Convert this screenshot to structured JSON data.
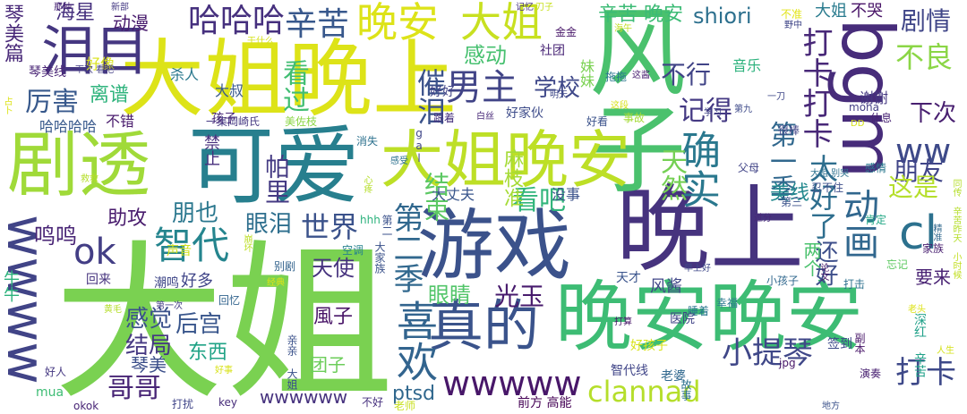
{
  "words": [
    {
      "text": "大姐",
      "color": "#7ad151"
    },
    {
      "text": "晚上",
      "color": "#46337e"
    },
    {
      "text": "风子",
      "color": "#4ac16d"
    },
    {
      "text": "晚安晚安",
      "color": "#3dbc74"
    },
    {
      "text": "可爱",
      "color": "#277f8e"
    },
    {
      "text": "游戏",
      "color": "#3b528b"
    },
    {
      "text": "大姐晚上",
      "color": "#dde318"
    },
    {
      "text": "剧透",
      "color": "#a0da39"
    },
    {
      "text": "大姐晚安",
      "color": "#bddf26"
    },
    {
      "text": "bgm",
      "color": "#472c7a"
    },
    {
      "text": "wwww",
      "color": "#414487"
    },
    {
      "text": "泪目",
      "color": "#453781"
    },
    {
      "text": "真的",
      "color": "#3a538b"
    },
    {
      "text": "喜欢",
      "color": "#32648e"
    },
    {
      "text": "晚安",
      "color": "#dde318"
    },
    {
      "text": "大姐",
      "color": "#c8e020"
    },
    {
      "text": "确实",
      "color": "#2a788e"
    },
    {
      "text": "cl",
      "color": "#2c718e"
    },
    {
      "text": "哈哈哈",
      "color": "#46307e"
    },
    {
      "text": "辛苦",
      "color": "#38588c"
    },
    {
      "text": "男主",
      "color": "#414487"
    },
    {
      "text": "ww",
      "color": "#3e4a89"
    },
    {
      "text": "动画",
      "color": "#31678e"
    },
    {
      "text": "打卡打卡",
      "color": "#482878"
    },
    {
      "text": "太好了",
      "color": "#2e6e8e"
    },
    {
      "text": "小提琴",
      "color": "#3f4788"
    },
    {
      "text": "wwwww",
      "color": "#481769"
    },
    {
      "text": "clannad",
      "color": "#b5de2b"
    },
    {
      "text": "打卡",
      "color": "#3e4989"
    },
    {
      "text": "第一季",
      "color": "#31688e"
    },
    {
      "text": "不良",
      "color": "#8bd646"
    },
    {
      "text": "剧情",
      "color": "#404688"
    },
    {
      "text": "不哭",
      "color": "#481467"
    },
    {
      "text": "大姐",
      "color": "#297b8e"
    },
    {
      "text": "第二季",
      "color": "#31688e"
    },
    {
      "text": "结束",
      "color": "#5cc863"
    },
    {
      "text": "智代",
      "color": "#25858e"
    },
    {
      "text": "ok",
      "color": "#433e85"
    },
    {
      "text": "世界",
      "color": "#3b528b"
    },
    {
      "text": "厉害",
      "color": "#38598c"
    },
    {
      "text": "看过",
      "color": "#40bd72"
    },
    {
      "text": "催泪",
      "color": "#3b528b"
    },
    {
      "text": "感动",
      "color": "#46c06f"
    },
    {
      "text": "辛苦 晚安",
      "color": "#3cbb75"
    },
    {
      "text": "shiori",
      "color": "#2d708e"
    },
    {
      "text": "学校",
      "color": "#3f4889"
    },
    {
      "text": "记得",
      "color": "#443983"
    },
    {
      "text": "不行",
      "color": "#414487"
    },
    {
      "text": "下次",
      "color": "#481f70"
    },
    {
      "text": "朋友",
      "color": "#404588"
    },
    {
      "text": "这是",
      "color": "#b5de2b"
    },
    {
      "text": "美线",
      "color": "#23898e"
    },
    {
      "text": "看吧",
      "color": "#31b57b"
    },
    {
      "text": "天然",
      "color": "#75d054"
    },
    {
      "text": "麻枝准",
      "color": "#a5db36"
    },
    {
      "text": "还好",
      "color": "#3d4e8a"
    },
    {
      "text": "两个",
      "color": "#4ac16d"
    },
    {
      "text": "光玉",
      "color": "#481b6d"
    },
    {
      "text": "眼睛",
      "color": "#52c569"
    },
    {
      "text": "感觉",
      "color": "#3b518b"
    },
    {
      "text": "后宫",
      "color": "#39568c"
    },
    {
      "text": "东西",
      "color": "#20a386"
    },
    {
      "text": "哥哥",
      "color": "#482576"
    },
    {
      "text": "琴美",
      "color": "#3c4f8a"
    },
    {
      "text": "结局",
      "color": "#453882"
    },
    {
      "text": "鸣鸣",
      "color": "#482475"
    },
    {
      "text": "助攻",
      "color": "#481b6d"
    },
    {
      "text": "朋也",
      "color": "#2a778e"
    },
    {
      "text": "眼泪",
      "color": "#2e6f8e"
    },
    {
      "text": "天使",
      "color": "#46327e"
    },
    {
      "text": "風子",
      "color": "#481467"
    },
    {
      "text": "团子",
      "color": "#6ccd5a"
    },
    {
      "text": "ptsd",
      "color": "#31688e"
    },
    {
      "text": "wwwwww",
      "color": "#46327e"
    },
    {
      "text": "帕里",
      "color": "#443a83"
    },
    {
      "text": "禁止",
      "color": "#472e7c"
    },
    {
      "text": "琴美篇",
      "color": "#482878"
    },
    {
      "text": "海星",
      "color": "#46307e"
    },
    {
      "text": "动漫",
      "color": "#481b6d"
    },
    {
      "text": "离谱",
      "color": "#2eb37c"
    },
    {
      "text": "哈哈哈哈",
      "color": "#38598c"
    },
    {
      "text": "不错",
      "color": "#481a6c"
    },
    {
      "text": "大叔",
      "color": "#38598c"
    },
    {
      "text": "杀人",
      "color": "#2a788e"
    },
    {
      "text": "好像",
      "color": "#d8e219"
    },
    {
      "text": "一集岡崎氏",
      "color": "#453882"
    },
    {
      "text": "美佐枝",
      "color": "#8bd646"
    },
    {
      "text": "好好",
      "color": "#414487"
    },
    {
      "text": "社团",
      "color": "#482576"
    },
    {
      "text": "音乐",
      "color": "#2db27d"
    },
    {
      "text": "谢谢",
      "color": "#453882"
    },
    {
      "text": "休息",
      "color": "#482374"
    },
    {
      "text": "妹妹",
      "color": "#7ad151"
    },
    {
      "text": "好家伙",
      "color": "#3e4c8a"
    },
    {
      "text": "跟着",
      "color": "#46307e"
    },
    {
      "text": "大姐 别哭",
      "color": "#2c718e"
    },
    {
      "text": "感情",
      "color": "#2a788e"
    },
    {
      "text": "父母",
      "color": "#414487"
    },
    {
      "text": "忍不住",
      "color": "#3d4e8a"
    },
    {
      "text": "大丈夫",
      "color": "#39568c"
    },
    {
      "text": "没事",
      "color": "#3b528b"
    },
    {
      "text": "肯定",
      "color": "#22a785"
    },
    {
      "text": "要来",
      "color": "#482173"
    },
    {
      "text": "风酱",
      "color": "#404688"
    },
    {
      "text": "打击",
      "color": "#2c718e"
    },
    {
      "text": "家族",
      "color": "#481f70"
    },
    {
      "text": "睡着",
      "color": "#2a778e"
    },
    {
      "text": "幸福",
      "color": "#2a778e"
    },
    {
      "text": "签到",
      "color": "#3e4a89"
    },
    {
      "text": "医院",
      "color": "#414487"
    },
    {
      "text": "小孩子",
      "color": "#31688e"
    },
    {
      "text": "牛牛",
      "color": "#2db27d"
    },
    {
      "text": "回来",
      "color": "#46337e"
    },
    {
      "text": "潮鸣",
      "color": "#3f4788"
    },
    {
      "text": "好多",
      "color": "#404588"
    },
    {
      "text": "回忆",
      "color": "#32648e"
    },
    {
      "text": "别剧",
      "color": "#33638d"
    },
    {
      "text": "好人",
      "color": "#453882"
    },
    {
      "text": "mua",
      "color": "#3dbc74"
    },
    {
      "text": "okok",
      "color": "#482576"
    },
    {
      "text": "key",
      "color": "#472c7a"
    },
    {
      "text": "不好",
      "color": "#46307e"
    },
    {
      "text": "前方 高能",
      "color": "#440154"
    },
    {
      "text": "智代线",
      "color": "#404588"
    },
    {
      "text": "老婆",
      "color": "#31688e"
    },
    {
      "text": "演奏",
      "color": "#482071"
    },
    {
      "text": "地方",
      "color": "#3b528b"
    },
    {
      "text": "深红 辛苦",
      "color": "#1fa088"
    },
    {
      "text": "jpg",
      "color": "#481769"
    },
    {
      "text": "好孩子",
      "color": "#d8e219"
    },
    {
      "text": "早上好",
      "color": "#3f4889"
    },
    {
      "text": "忘记",
      "color": "#5ec962"
    },
    {
      "text": "天才",
      "color": "#3a548c"
    },
    {
      "text": "声音",
      "color": "#d2e21b"
    },
    {
      "text": "孩子",
      "color": "#482878"
    },
    {
      "text": "第九",
      "color": "#3e4a89"
    },
    {
      "text": "同传 辛苦昨天",
      "color": "#b5de2b"
    },
    {
      "text": "很棒",
      "color": "#414487"
    },
    {
      "text": "事故",
      "color": "#a5db36"
    },
    {
      "text": "好看",
      "color": "#3b528b"
    },
    {
      "text": "明天",
      "color": "#3f4889"
    },
    {
      "text": "下次 看吧",
      "color": "#433e85"
    },
    {
      "text": "琴美线",
      "color": "#482475"
    },
    {
      "text": "拖拖",
      "color": "#2a778e"
    },
    {
      "text": "不准",
      "color": "#e2e418"
    },
    {
      "text": "野中",
      "color": "#404688"
    },
    {
      "text": "一刀",
      "color": "#3f4889"
    },
    {
      "text": "金金",
      "color": "#481769"
    },
    {
      "text": "mona",
      "color": "#433e85"
    },
    {
      "text": "第三",
      "color": "#3b528b"
    },
    {
      "text": "消失",
      "color": "#2c718e"
    },
    {
      "text": "空调",
      "color": "#26828e"
    },
    {
      "text": "经典",
      "color": "#dde318"
    },
    {
      "text": "救救",
      "color": "#b5de2b"
    },
    {
      "text": "打扰",
      "color": "#404588"
    },
    {
      "text": "老师",
      "color": "#c8e020"
    },
    {
      "text": "新部",
      "color": "#443983"
    },
    {
      "text": "故事",
      "color": "#2c728e"
    },
    {
      "text": "人生",
      "color": "#d5e21a"
    },
    {
      "text": "gal",
      "color": "#404688"
    },
    {
      "text": "打算",
      "color": "#481769"
    },
    {
      "text": "第一次",
      "color": "#433e85"
    },
    {
      "text": "这酱",
      "color": "#481f70"
    },
    {
      "text": "心疼",
      "color": "#b5de2b"
    },
    {
      "text": "这段",
      "color": "#d8e219"
    },
    {
      "text": "学习",
      "color": "#414487"
    },
    {
      "text": "感受",
      "color": "#2c718e"
    },
    {
      "text": "大家族",
      "color": "#3b528b"
    },
    {
      "text": "hhh",
      "color": "#2db27d"
    },
    {
      "text": "刀子",
      "color": "#c8e020"
    },
    {
      "text": "记忆",
      "color": "#46327e"
    },
    {
      "text": "第二",
      "color": "#3b528b"
    },
    {
      "text": "亲亲 大姐",
      "color": "#3b528b"
    },
    {
      "text": "白丝",
      "color": "#482878"
    },
    {
      "text": "老头",
      "color": "#dde318"
    },
    {
      "text": "小时候",
      "color": "#c2df23"
    },
    {
      "text": "精准",
      "color": "#31688e"
    },
    {
      "text": "DD",
      "color": "#d5e21a"
    },
    {
      "text": "论文",
      "color": "#481769"
    },
    {
      "text": "过分",
      "color": "#482878"
    },
    {
      "text": "黄毛",
      "color": "#b5de2b"
    },
    {
      "text": "占卜",
      "color": "#dde318"
    },
    {
      "text": "干什么",
      "color": "#d5e21a"
    },
    {
      "text": "海午",
      "color": "#c2df23"
    },
    {
      "text": "好事",
      "color": "#d8e219"
    },
    {
      "text": "副本",
      "color": "#481769"
    },
    {
      "text": "崩坏",
      "color": "#bddf26"
    },
    {
      "text": "那种",
      "color": "#482475"
    }
  ]
}
